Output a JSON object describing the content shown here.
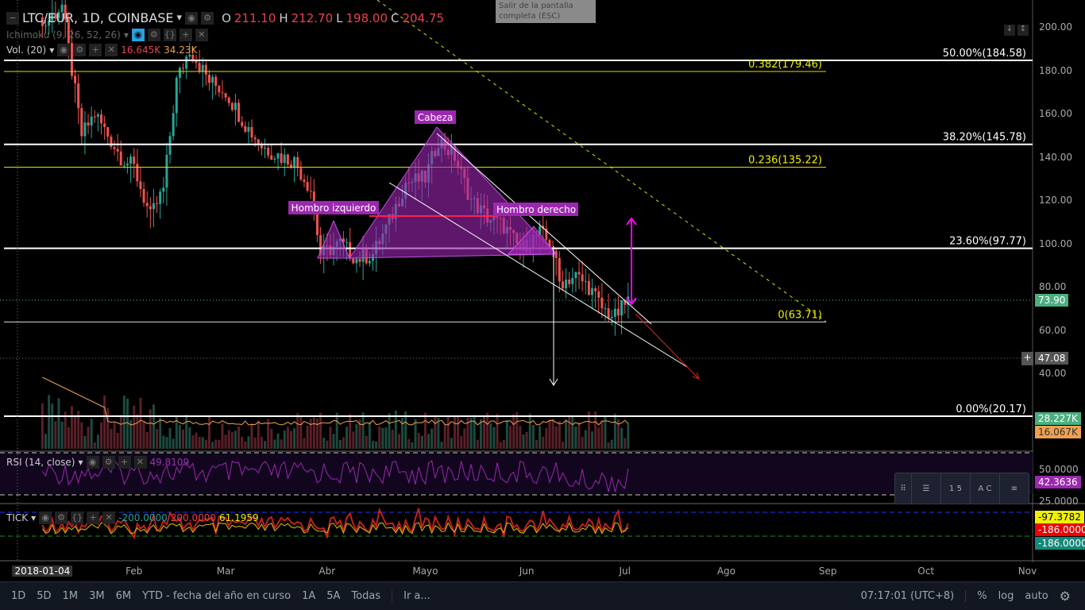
{
  "header": {
    "symbol": "LTC/EUR, 1D, COINBASE",
    "o_label": "O",
    "open": "211.10",
    "h_label": "H",
    "high": "212.70",
    "l_label": "L",
    "low": "198.00",
    "c_label": "C",
    "close": "204.75",
    "ichimoku": "Ichimoku (9, 26, 52, 26)",
    "volume": "Vol. (20)",
    "vol_value": "16.645K",
    "vol_ma": "34.23K"
  },
  "tooltip": "Salir de la pantalla completa (ESC)",
  "rsi": {
    "label": "RSI (14, close)",
    "value": "49.8109",
    "tick_50": "50.0000",
    "tick_25": "25.0000",
    "current": "42.3636"
  },
  "tick": {
    "label": "TICK",
    "v1": "-200.0000",
    "v2": "200.0000",
    "v3": "61.1959",
    "tag1": "-97.3782",
    "tag2": "-186.0000",
    "tag3": "-186.0000"
  },
  "price_tags": {
    "last": "73.90",
    "cross": "47.08",
    "vol": "28.227K",
    "vol_ma": "16.067K"
  },
  "toolbar": {
    "t1": "1  5",
    "t2": "A  C"
  },
  "bottombar": {
    "items": [
      "1D",
      "5D",
      "1M",
      "3M",
      "6M",
      "YTD - fecha del año en curso",
      "1A",
      "5A",
      "Todas",
      "Ir a..."
    ],
    "time": "07:17:01 (UTC+8)",
    "pct": "%",
    "log": "log",
    "auto": "auto"
  },
  "colors": {
    "up": "#26a69a",
    "down": "#ef5350",
    "fib": "#ffffff",
    "fib_yellow": "#f0f000",
    "pattern": "#9c27b0"
  },
  "chart_data": {
    "type": "candlestick",
    "title": "LTC/EUR, 1D, COINBASE",
    "ylim": [
      20,
      205
    ],
    "y_ticks": [
      "200.00",
      "180.00",
      "160.00",
      "140.00",
      "120.00",
      "100.00",
      "80.00",
      "60.00",
      "40.00"
    ],
    "x_ticks": [
      "2018-01-04",
      "Feb",
      "Mar",
      "Abr",
      "Mayo",
      "Jun",
      "Jul",
      "Ago",
      "Sep",
      "Oct",
      "Nov"
    ],
    "close_keypoints": [
      [
        3,
        200
      ],
      [
        9,
        210
      ],
      [
        15,
        150
      ],
      [
        19,
        160
      ],
      [
        27,
        140
      ],
      [
        31,
        135
      ],
      [
        36,
        112
      ],
      [
        40,
        125
      ],
      [
        44,
        175
      ],
      [
        48,
        190
      ],
      [
        54,
        175
      ],
      [
        59,
        170
      ],
      [
        65,
        155
      ],
      [
        70,
        145
      ],
      [
        76,
        140
      ],
      [
        80,
        138
      ],
      [
        85,
        125
      ],
      [
        88,
        95
      ],
      [
        94,
        100
      ],
      [
        99,
        93
      ],
      [
        104,
        95
      ],
      [
        109,
        110
      ],
      [
        114,
        128
      ],
      [
        120,
        130
      ],
      [
        124,
        148
      ],
      [
        129,
        140
      ],
      [
        134,
        120
      ],
      [
        139,
        112
      ],
      [
        144,
        108
      ],
      [
        149,
        97
      ],
      [
        155,
        105
      ],
      [
        159,
        98
      ],
      [
        161,
        82
      ],
      [
        166,
        85
      ],
      [
        170,
        80
      ],
      [
        174,
        70
      ],
      [
        178,
        66
      ],
      [
        182,
        73.9
      ]
    ],
    "fib_levels": [
      {
        "label": "50.00%(184.58)",
        "value": 184.58,
        "color": "white"
      },
      {
        "label": "0.382(179.46)",
        "value": 179.46,
        "color": "yellow"
      },
      {
        "label": "38.20%(145.78)",
        "value": 145.78,
        "color": "white"
      },
      {
        "label": "0.236(135.22)",
        "value": 135.22,
        "color": "yellow"
      },
      {
        "label": "23.60%(97.77)",
        "value": 97.77,
        "color": "white"
      },
      {
        "label": "0(63.71)",
        "value": 63.71,
        "color": "yellow"
      },
      {
        "label": "0.00%(20.17)",
        "value": 20.17,
        "color": "white"
      }
    ],
    "annotations": [
      "Cabeza",
      "Hombro izquierdo",
      "Hombro derecho"
    ]
  }
}
